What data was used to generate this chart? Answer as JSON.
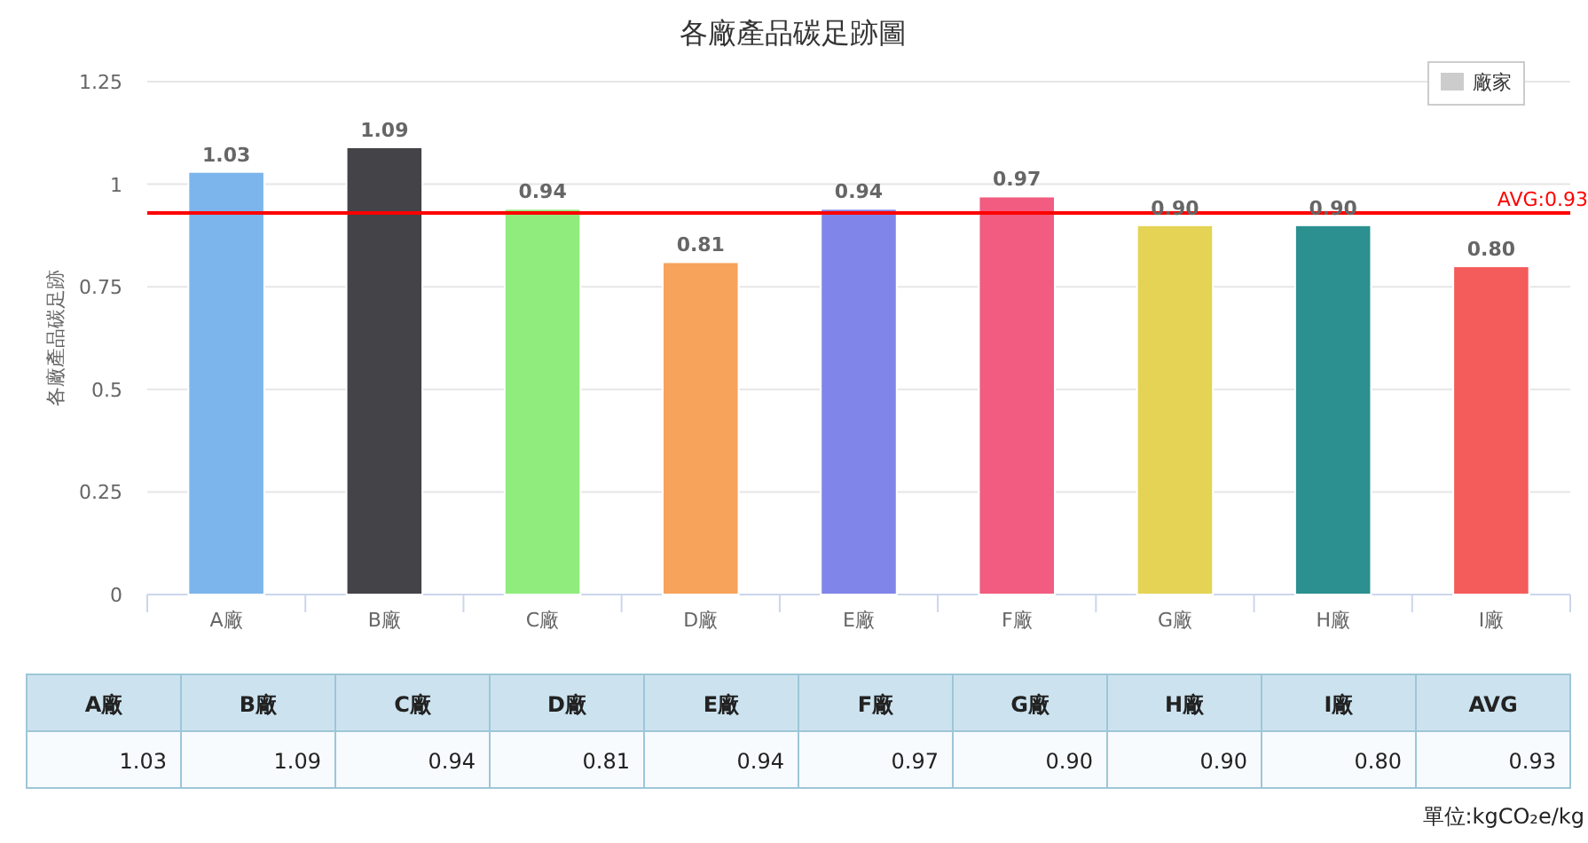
{
  "chart_data": {
    "type": "bar",
    "title": "各廠產品碳足跡圖",
    "ylabel": "各廠產品碳足跡",
    "categories": [
      "A廠",
      "B廠",
      "C廠",
      "D廠",
      "E廠",
      "F廠",
      "G廠",
      "H廠",
      "I廠"
    ],
    "series": [
      {
        "name": "廠家",
        "color": "#cccccc",
        "colors": [
          "#7cb5ec",
          "#434348",
          "#90ed7d",
          "#f7a35c",
          "#8085e9",
          "#f15c80",
          "#e4d354",
          "#2b908f",
          "#f45b5b"
        ],
        "values": [
          1.03,
          1.09,
          0.94,
          0.81,
          0.94,
          0.97,
          0.9,
          0.9,
          0.8
        ],
        "value_labels": [
          "1.03",
          "1.09",
          "0.94",
          "0.81",
          "0.94",
          "0.97",
          "0.90",
          "0.90",
          "0.80"
        ]
      }
    ],
    "ylim": [
      0,
      1.25
    ],
    "yticks": [
      0,
      0.25,
      0.5,
      0.75,
      1,
      1.25
    ],
    "grid": "y",
    "legend": "top right",
    "ref_lines": [
      {
        "axis": "y",
        "value": 0.93,
        "label": "AVG:0.93",
        "color": "#ff0000"
      }
    ],
    "annotations": [
      "AVG",
      "單位:kgCO₂e/kg",
      "0.93"
    ]
  }
}
